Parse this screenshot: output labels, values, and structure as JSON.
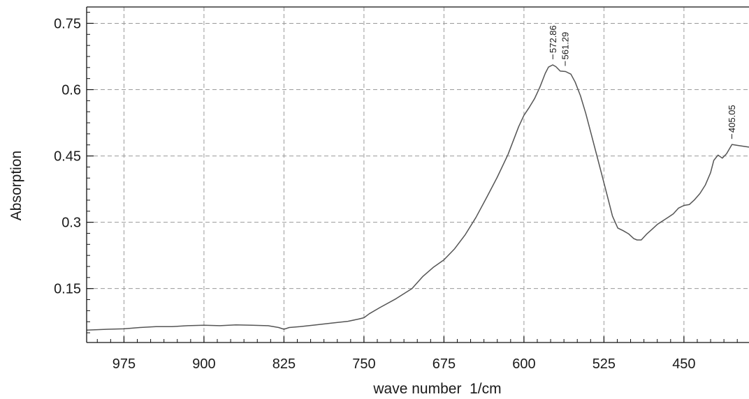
{
  "chart_data": {
    "type": "line",
    "title": "",
    "xlabel": "wave number  1/cm",
    "ylabel": "Absorption",
    "xlim": [
      1010,
      389
    ],
    "ylim": [
      0.028,
      0.787
    ],
    "x_reversed": true,
    "grid": true,
    "grid_style": "dashed",
    "line_color": "#555555",
    "x_ticks": [
      975,
      900,
      825,
      750,
      675,
      600,
      525,
      450
    ],
    "y_ticks": [
      0.15,
      0.3,
      0.45,
      0.6,
      0.75
    ],
    "x_tick_labels": [
      "975",
      "900",
      "825",
      "750",
      "675",
      "600",
      "525",
      "450"
    ],
    "y_tick_labels": [
      "0.15",
      "0.3",
      "0.45",
      "0.6",
      "0.75"
    ],
    "series": [
      {
        "x": [
          1010,
          990,
          975,
          960,
          945,
          930,
          915,
          900,
          885,
          870,
          855,
          840,
          830,
          825,
          820,
          810,
          795,
          780,
          765,
          755,
          750,
          745,
          735,
          720,
          705,
          695,
          685,
          675,
          665,
          655,
          645,
          635,
          625,
          615,
          605,
          600,
          595,
          590,
          585,
          580,
          577,
          573,
          570,
          566,
          561,
          556,
          552,
          547,
          542,
          537,
          532,
          527,
          522,
          517,
          512,
          507,
          502,
          497,
          494,
          490,
          485,
          480,
          475,
          470,
          465,
          460,
          455,
          450,
          445,
          440,
          435,
          430,
          425,
          422,
          418,
          414,
          410,
          405,
          400,
          389
        ],
        "y": [
          0.056,
          0.058,
          0.059,
          0.062,
          0.064,
          0.064,
          0.066,
          0.067,
          0.066,
          0.068,
          0.067,
          0.066,
          0.062,
          0.058,
          0.062,
          0.064,
          0.068,
          0.072,
          0.076,
          0.081,
          0.084,
          0.093,
          0.107,
          0.127,
          0.15,
          0.177,
          0.198,
          0.215,
          0.24,
          0.272,
          0.311,
          0.356,
          0.402,
          0.453,
          0.516,
          0.542,
          0.56,
          0.58,
          0.606,
          0.637,
          0.651,
          0.656,
          0.652,
          0.642,
          0.641,
          0.635,
          0.617,
          0.586,
          0.546,
          0.5,
          0.454,
          0.408,
          0.361,
          0.314,
          0.287,
          0.281,
          0.274,
          0.263,
          0.26,
          0.26,
          0.273,
          0.284,
          0.295,
          0.303,
          0.311,
          0.319,
          0.332,
          0.338,
          0.34,
          0.351,
          0.365,
          0.384,
          0.412,
          0.44,
          0.452,
          0.445,
          0.455,
          0.476,
          0.474,
          0.47
        ]
      }
    ],
    "annotations": [
      {
        "x": 572.86,
        "y": 0.656,
        "text": "572.86"
      },
      {
        "x": 561.29,
        "y": 0.641,
        "text": "561.29"
      },
      {
        "x": 405.05,
        "y": 0.476,
        "text": "405.05"
      }
    ]
  }
}
